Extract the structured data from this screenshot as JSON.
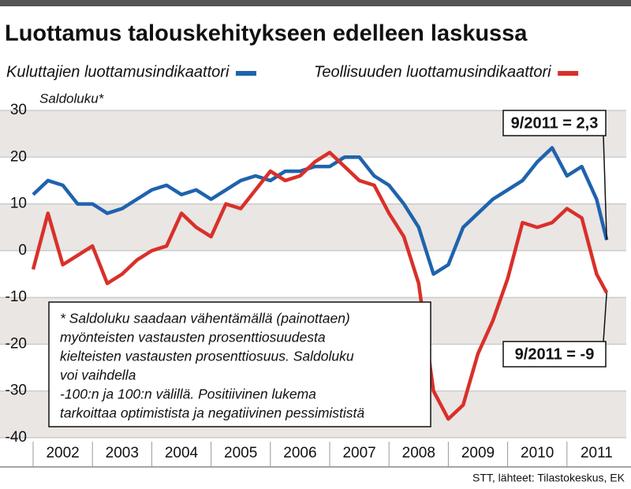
{
  "chart_data": {
    "type": "line",
    "title": "Luottamus talouskehitykseen edelleen laskussa",
    "y_label": "Saldoluku*",
    "source": "STT, lähteet: Tilastokeskus, EK",
    "note": [
      "* Saldoluku saadaan vähentämällä (painottaen)",
      "myönteisten vastausten prosenttiosuudesta",
      "kielteisten vastausten prosenttiosuus. Saldoluku",
      "voi vaihdella",
      "-100:n ja 100:n välillä. Positiivinen lukema",
      "tarkoittaa optimistista ja negatiivinen pessimististä"
    ],
    "annotations": [
      {
        "text": "9/2011 = 2,3",
        "series": 0
      },
      {
        "text": "9/2011 = -9",
        "series": 1
      }
    ],
    "x": [
      2002,
      2002.25,
      2002.5,
      2002.75,
      2003,
      2003.25,
      2003.5,
      2003.75,
      2004,
      2004.25,
      2004.5,
      2004.75,
      2005,
      2005.25,
      2005.5,
      2005.75,
      2006,
      2006.25,
      2006.5,
      2006.75,
      2007,
      2007.25,
      2007.5,
      2007.75,
      2008,
      2008.25,
      2008.5,
      2008.75,
      2009,
      2009.25,
      2009.5,
      2009.75,
      2010,
      2010.25,
      2010.5,
      2010.75,
      2011,
      2011.25,
      2011.5,
      2011.67
    ],
    "series": [
      {
        "name": "Kuluttajien luottamusindikaattori",
        "color": "#1f63ad",
        "values": [
          12,
          15,
          14,
          10,
          10,
          8,
          9,
          11,
          13,
          14,
          12,
          13,
          11,
          13,
          15,
          16,
          15,
          17,
          17,
          18,
          18,
          20,
          20,
          16,
          14,
          10,
          5,
          -5,
          -3,
          5,
          8,
          11,
          13,
          15,
          19,
          22,
          16,
          18,
          11,
          2.3
        ]
      },
      {
        "name": "Teollisuuden luottamusindikaattori",
        "color": "#d9302a",
        "values": [
          -4,
          8,
          -3,
          -1,
          1,
          -7,
          -5,
          -2,
          0,
          1,
          8,
          5,
          3,
          10,
          9,
          13,
          17,
          15,
          16,
          19,
          21,
          18,
          15,
          14,
          8,
          3,
          -7,
          -30,
          -36,
          -33,
          -22,
          -15,
          -6,
          6,
          5,
          6,
          9,
          7,
          -5,
          -9
        ]
      }
    ],
    "xlim": [
      2002,
      2012
    ],
    "xticks": [
      {
        "value": 2002.5,
        "label": "2002"
      },
      {
        "value": 2003.5,
        "label": "2003"
      },
      {
        "value": 2004.5,
        "label": "2004"
      },
      {
        "value": 2005.5,
        "label": "2005"
      },
      {
        "value": 2006.5,
        "label": "2006"
      },
      {
        "value": 2007.5,
        "label": "2007"
      },
      {
        "value": 2008.5,
        "label": "2008"
      },
      {
        "value": 2009.5,
        "label": "2009"
      },
      {
        "value": 2010.5,
        "label": "2010"
      },
      {
        "value": 2011.5,
        "label": "2011"
      }
    ],
    "ylim": [
      -40,
      30
    ],
    "yticks": [
      30,
      20,
      10,
      0,
      -10,
      -20,
      -30,
      -40
    ]
  }
}
